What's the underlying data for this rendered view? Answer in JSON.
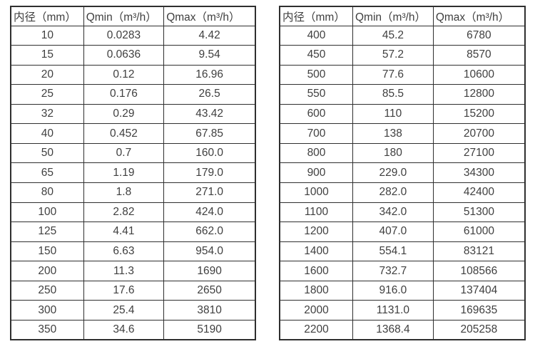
{
  "colors": {
    "text": "#3f3f3f",
    "border": "#2f2f2f",
    "background": "#ffffff"
  },
  "chart_data": [
    {
      "type": "table",
      "title": "",
      "headers": [
        "内径（mm）",
        "Qmin（m³/h）",
        "Qmax（m³/h）"
      ],
      "rows": [
        [
          "10",
          "0.0283",
          "4.42"
        ],
        [
          "15",
          "0.0636",
          "9.54"
        ],
        [
          "20",
          "0.12",
          "16.96"
        ],
        [
          "25",
          "0.176",
          "26.5"
        ],
        [
          "32",
          "0.29",
          "43.42"
        ],
        [
          "40",
          "0.452",
          "67.85"
        ],
        [
          "50",
          "0.7",
          "160.0"
        ],
        [
          "65",
          "1.19",
          "179.0"
        ],
        [
          "80",
          "1.8",
          "271.0"
        ],
        [
          "100",
          "2.82",
          "424.0"
        ],
        [
          "125",
          "4.41",
          "662.0"
        ],
        [
          "150",
          "6.63",
          "954.0"
        ],
        [
          "200",
          "11.3",
          "1690"
        ],
        [
          "250",
          "17.6",
          "2650"
        ],
        [
          "300",
          "25.4",
          "3810"
        ],
        [
          "350",
          "34.6",
          "5190"
        ]
      ]
    },
    {
      "type": "table",
      "title": "",
      "headers": [
        "内径（mm）",
        "Qmin（m³/h）",
        "Qmax（m³/h）"
      ],
      "rows": [
        [
          "400",
          "45.2",
          "6780"
        ],
        [
          "450",
          "57.2",
          "8570"
        ],
        [
          "500",
          "77.6",
          "10600"
        ],
        [
          "550",
          "85.5",
          "12800"
        ],
        [
          "600",
          "110",
          "15200"
        ],
        [
          "700",
          "138",
          "20700"
        ],
        [
          "800",
          "180",
          "27100"
        ],
        [
          "900",
          "229.0",
          "34300"
        ],
        [
          "1000",
          "282.0",
          "42400"
        ],
        [
          "1100",
          "342.0",
          "51300"
        ],
        [
          "1200",
          "407.0",
          "61000"
        ],
        [
          "1400",
          "554.1",
          "83121"
        ],
        [
          "1600",
          "732.7",
          "108566"
        ],
        [
          "1800",
          "916.0",
          "137404"
        ],
        [
          "2000",
          "1131.0",
          "169635"
        ],
        [
          "2200",
          "1368.4",
          "205258"
        ]
      ]
    }
  ]
}
